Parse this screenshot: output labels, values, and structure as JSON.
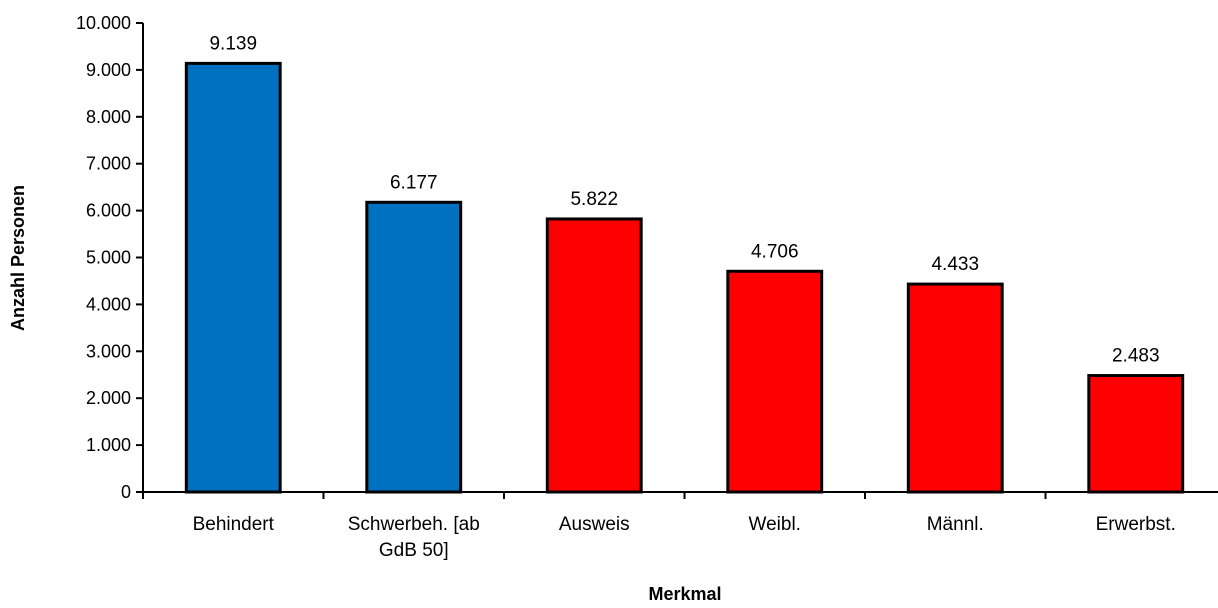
{
  "chart_data": {
    "type": "bar",
    "title": "",
    "xlabel": "Merkmal",
    "ylabel": "Anzahl Personen",
    "ylim": [
      0,
      10000
    ],
    "y_tick_step": 1000,
    "y_tick_labels": [
      "0",
      "1.000",
      "2.000",
      "3.000",
      "4.000",
      "5.000",
      "6.000",
      "7.000",
      "8.000",
      "9.000",
      "10.000"
    ],
    "grid": false,
    "legend": "none",
    "categories": [
      [
        "Behindert"
      ],
      [
        "Schwerbeh. [ab",
        "GdB 50]"
      ],
      [
        "Ausweis"
      ],
      [
        "Weibl."
      ],
      [
        "Männl."
      ],
      [
        "Erwerbst."
      ]
    ],
    "values": [
      9139,
      6177,
      5822,
      4706,
      4433,
      2483
    ],
    "value_labels": [
      "9.139",
      "6.177",
      "5.822",
      "4.706",
      "4.433",
      "2.483"
    ],
    "bar_colors": [
      "#0070C0",
      "#0070C0",
      "#FF0000",
      "#FF0000",
      "#FF0000",
      "#FF0000"
    ],
    "bar_outline_color": "#000000"
  }
}
